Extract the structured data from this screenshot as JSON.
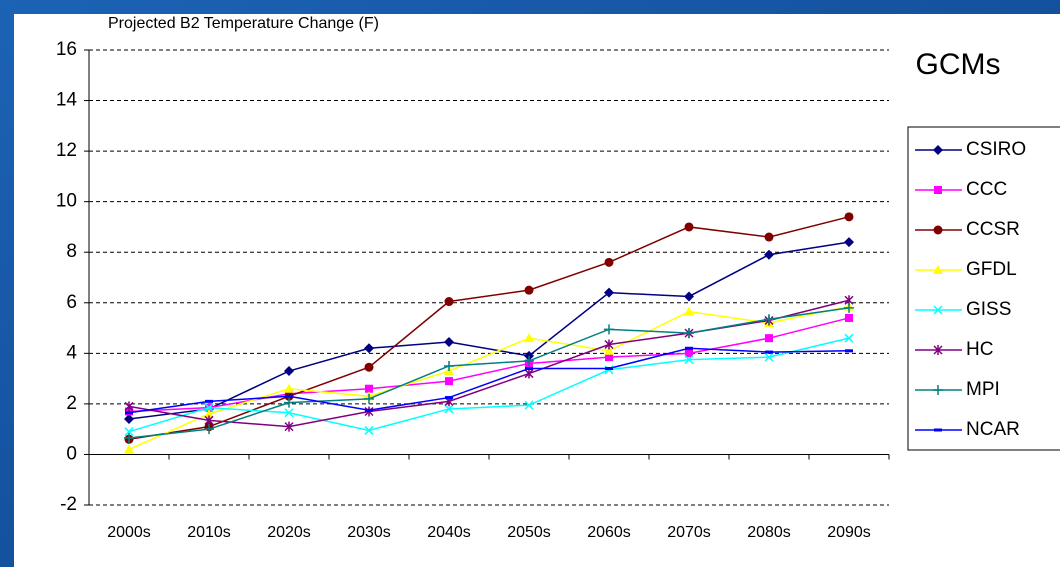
{
  "chart_data": {
    "type": "line",
    "title": "Projected B2 Temperature Change (F)",
    "legend_title": "GCMs",
    "categories": [
      "2000s",
      "2010s",
      "2020s",
      "2030s",
      "2040s",
      "2050s",
      "2060s",
      "2070s",
      "2080s",
      "2090s"
    ],
    "ylim": [
      -2,
      16
    ],
    "yticks": [
      -2,
      0,
      2,
      4,
      6,
      8,
      10,
      12,
      14,
      16
    ],
    "grid": true,
    "legend": "right",
    "series": [
      {
        "name": "CSIRO",
        "color": "#000080",
        "marker": "diamond",
        "values": [
          1.4,
          1.8,
          3.3,
          4.2,
          4.45,
          3.9,
          6.4,
          6.25,
          7.9,
          8.4
        ]
      },
      {
        "name": "CCC",
        "color": "#ff00ff",
        "marker": "square",
        "values": [
          1.7,
          1.85,
          2.4,
          2.6,
          2.9,
          3.6,
          3.85,
          4.0,
          4.6,
          5.4
        ]
      },
      {
        "name": "CCSR",
        "color": "#800000",
        "marker": "circle",
        "values": [
          0.6,
          1.1,
          2.3,
          3.45,
          6.05,
          6.5,
          7.6,
          9.0,
          8.6,
          9.4
        ]
      },
      {
        "name": "GFDL",
        "color": "#ffff00",
        "marker": "triangle",
        "values": [
          0.2,
          1.6,
          2.6,
          2.3,
          3.3,
          4.6,
          4.1,
          5.65,
          5.2,
          5.85
        ]
      },
      {
        "name": "GISS",
        "color": "#00ffff",
        "marker": "x",
        "values": [
          0.9,
          1.85,
          1.65,
          0.95,
          1.8,
          1.95,
          3.35,
          3.75,
          3.85,
          4.6
        ]
      },
      {
        "name": "HC",
        "color": "#800080",
        "marker": "star",
        "values": [
          1.9,
          1.35,
          1.1,
          1.7,
          2.1,
          3.2,
          4.35,
          4.8,
          5.3,
          6.1
        ]
      },
      {
        "name": "MPI",
        "color": "#008080",
        "marker": "plus",
        "values": [
          0.65,
          1.0,
          2.05,
          2.2,
          3.5,
          3.7,
          4.95,
          4.8,
          5.35,
          5.8
        ]
      },
      {
        "name": "NCAR",
        "color": "#0000ff",
        "marker": "dash",
        "values": [
          1.65,
          2.1,
          2.3,
          1.75,
          2.25,
          3.4,
          3.4,
          4.2,
          4.05,
          4.1
        ]
      }
    ]
  }
}
